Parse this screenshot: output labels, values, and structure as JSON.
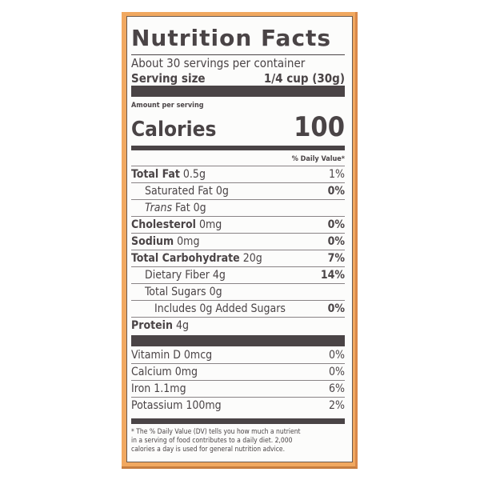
{
  "title": "Nutrition Facts",
  "servings_per_container": "About 30 servings per container",
  "serving_size": {
    "label": "Serving size",
    "value": "1/4 cup (30g)"
  },
  "amount_per_serving": "Amount per serving",
  "calories": {
    "label": "Calories",
    "value": "100"
  },
  "dv_header": "% Daily Value*",
  "nutrients": [
    {
      "label": "Total Fat",
      "amount": "0.5g",
      "dv": "1%"
    },
    {
      "label": "Saturated Fat",
      "amount": "0g",
      "dv": "0%"
    },
    {
      "label": "Trans",
      "label_rest": "Fat",
      "amount": "0g",
      "dv": ""
    },
    {
      "label": "Cholesterol",
      "amount": "0mg",
      "dv": "0%"
    },
    {
      "label": "Sodium",
      "amount": "0mg",
      "dv": "0%"
    },
    {
      "label": "Total Carbohydrate",
      "amount": "20g",
      "dv": "7%"
    },
    {
      "label": "Dietary Fiber",
      "amount": "4g",
      "dv": "14%"
    },
    {
      "label": "Total Sugars",
      "amount": "0g",
      "dv": ""
    },
    {
      "label": "Includes 0g Added Sugars",
      "amount": "",
      "dv": "0%"
    },
    {
      "label": "Protein",
      "amount": "4g",
      "dv": ""
    }
  ],
  "vitamins": [
    {
      "label": "Vitamin D",
      "amount": "0mcg",
      "dv": "0%"
    },
    {
      "label": "Calcium",
      "amount": "0mg",
      "dv": "0%"
    },
    {
      "label": "Iron",
      "amount": "1.1mg",
      "dv": "6%"
    },
    {
      "label": "Potassium",
      "amount": "100mg",
      "dv": "2%"
    }
  ],
  "footnote": "* The % Daily Value (DV) tells you how much a nutrient in a serving of food contributes to a daily diet. 2,000 calories a day is used for general nutrition advice.",
  "colors": {
    "border": "#f1a860",
    "text": "#4a4446"
  }
}
